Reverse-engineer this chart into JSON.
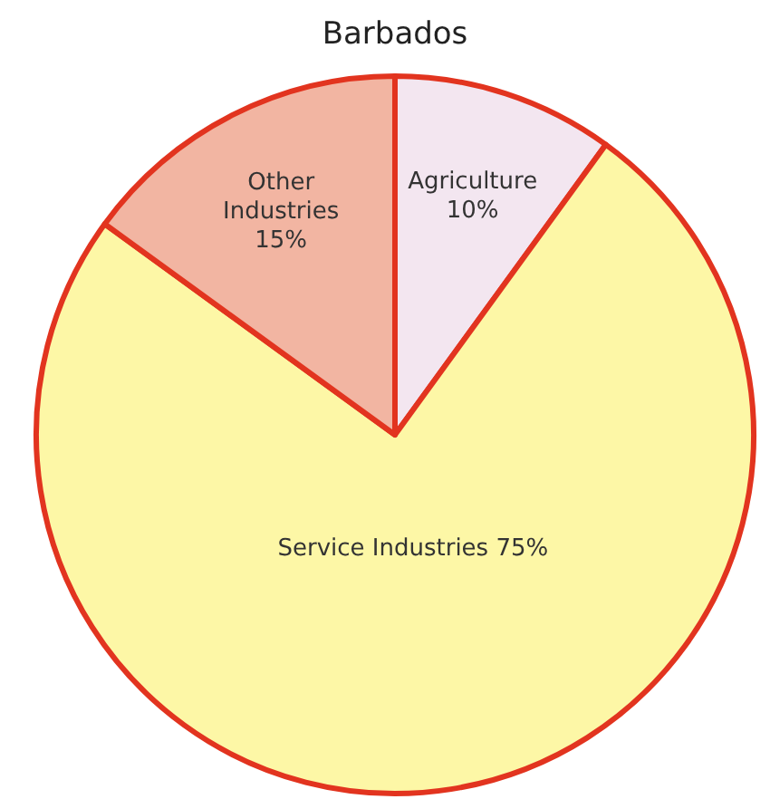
{
  "chart_data": {
    "type": "pie",
    "title": "Barbados",
    "categories": [
      "Agriculture",
      "Service Industries",
      "Other Industries"
    ],
    "values": [
      10,
      75,
      15
    ],
    "value_labels": [
      "10%",
      "75%",
      "15%"
    ],
    "colors": [
      "#f3e6f0",
      "#fdf7a6",
      "#f2b5a2"
    ],
    "data_labels": true
  }
}
